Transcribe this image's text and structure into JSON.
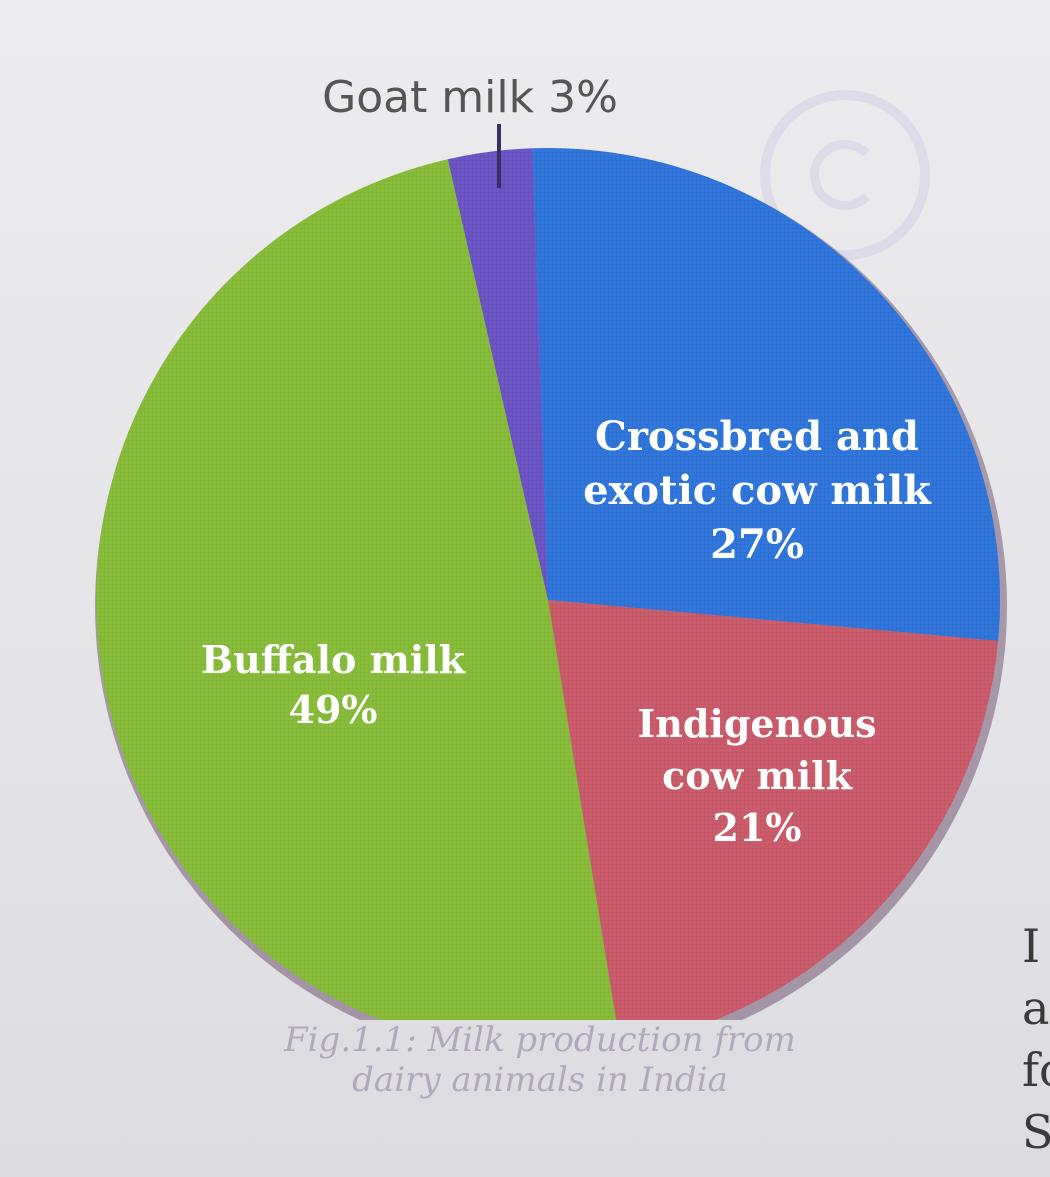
{
  "chart_data": {
    "type": "pie",
    "title": "",
    "slices": [
      {
        "label_lines": [
          "Crossbred and",
          "exotic cow milk",
          "27%"
        ],
        "value": 27,
        "color": "#2f74d8"
      },
      {
        "label_lines": [
          "Indigenous",
          "cow milk",
          "21%"
        ],
        "value": 21,
        "color": "#c85a6a"
      },
      {
        "label_lines": [
          "Buffalo milk",
          "49%"
        ],
        "value": 49,
        "color": "#86bb3a"
      },
      {
        "label_lines": [
          "Goat milk 3%"
        ],
        "value": 3,
        "color": "#6a53c3"
      }
    ],
    "caption_lines": [
      "Fig.1.1: Milk production from",
      "dairy animals in India"
    ]
  },
  "margin_letters": [
    "I",
    "a",
    "fo",
    "S"
  ],
  "colors": {
    "background": "#e6e6e9",
    "caption": "#b0a8bc",
    "callout": "#555555"
  }
}
